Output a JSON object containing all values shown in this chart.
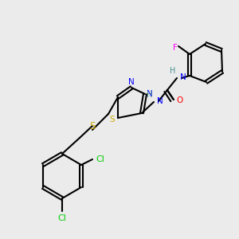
{
  "bg_color": "#ebebeb",
  "atom_colors": {
    "C": "#000000",
    "N": "#0000ff",
    "O": "#ff0000",
    "S": "#ccaa00",
    "F": "#ff00ff",
    "Cl": "#00cc00",
    "H": "#4a9090"
  },
  "bond_color": "#000000",
  "bond_lw": 1.5,
  "font_size": 7.5
}
